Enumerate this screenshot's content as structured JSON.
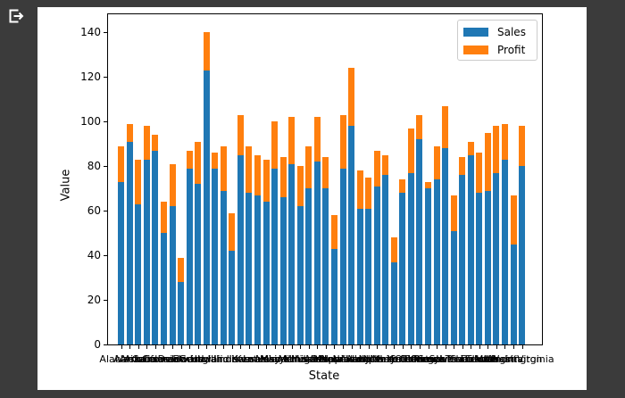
{
  "window": {
    "background": "#3b3b3b"
  },
  "icons": {
    "top_left": "pop-out-arrow-icon"
  },
  "chart_data": {
    "type": "bar",
    "stacked": true,
    "title": "",
    "xlabel": "State",
    "ylabel": "Value",
    "ylim": [
      0,
      148
    ],
    "yticks": [
      0,
      20,
      40,
      60,
      80,
      100,
      120,
      140
    ],
    "grid": false,
    "legend_position": "upper right",
    "categories": [
      "Alabama",
      "Alaska",
      "Arizona",
      "Arkansas",
      "California",
      "Colorado",
      "Connecticut",
      "Delaware",
      "Florida",
      "Georgia",
      "Hawaii",
      "Idaho",
      "Illinois",
      "Indiana",
      "Iowa",
      "Kansas",
      "Kentucky",
      "Louisiana",
      "Maine",
      "Maryland",
      "Massachusetts",
      "Michigan",
      "Minnesota",
      "Mississippi",
      "Missouri",
      "Montana",
      "Nebraska",
      "Nevada",
      "New Hampshire",
      "New Jersey",
      "New Mexico",
      "New York",
      "North Carolina",
      "North Dakota",
      "Ohio",
      "Oklahoma",
      "Oregon",
      "Pennsylvania",
      "Rhode Island",
      "South Carolina",
      "South Dakota",
      "Tennessee",
      "Texas",
      "Utah",
      "Vermont",
      "Virginia",
      "Washington",
      "West Virginia"
    ],
    "series": [
      {
        "name": "Sales",
        "color": "#1f77b4",
        "values": [
          73,
          91,
          63,
          83,
          87,
          50,
          62,
          28,
          79,
          72,
          123,
          79,
          69,
          42,
          85,
          68,
          67,
          64,
          79,
          66,
          81,
          62,
          70,
          82,
          70,
          43,
          79,
          98,
          61,
          61,
          71,
          76,
          37,
          68,
          77,
          92,
          70,
          74,
          88,
          51,
          76,
          85,
          68,
          69,
          77,
          83,
          45,
          80
        ]
      },
      {
        "name": "Profit",
        "color": "#ff7f0e",
        "values": [
          16,
          8,
          20,
          15,
          7,
          14,
          19,
          11,
          8,
          19,
          17,
          7,
          20,
          17,
          18,
          21,
          18,
          19,
          21,
          18,
          21,
          18,
          19,
          20,
          14,
          15,
          24,
          26,
          17,
          14,
          16,
          9,
          11,
          6,
          20,
          11,
          3,
          15,
          19,
          16,
          8,
          6,
          18,
          26,
          21,
          16,
          22,
          18
        ]
      }
    ]
  }
}
